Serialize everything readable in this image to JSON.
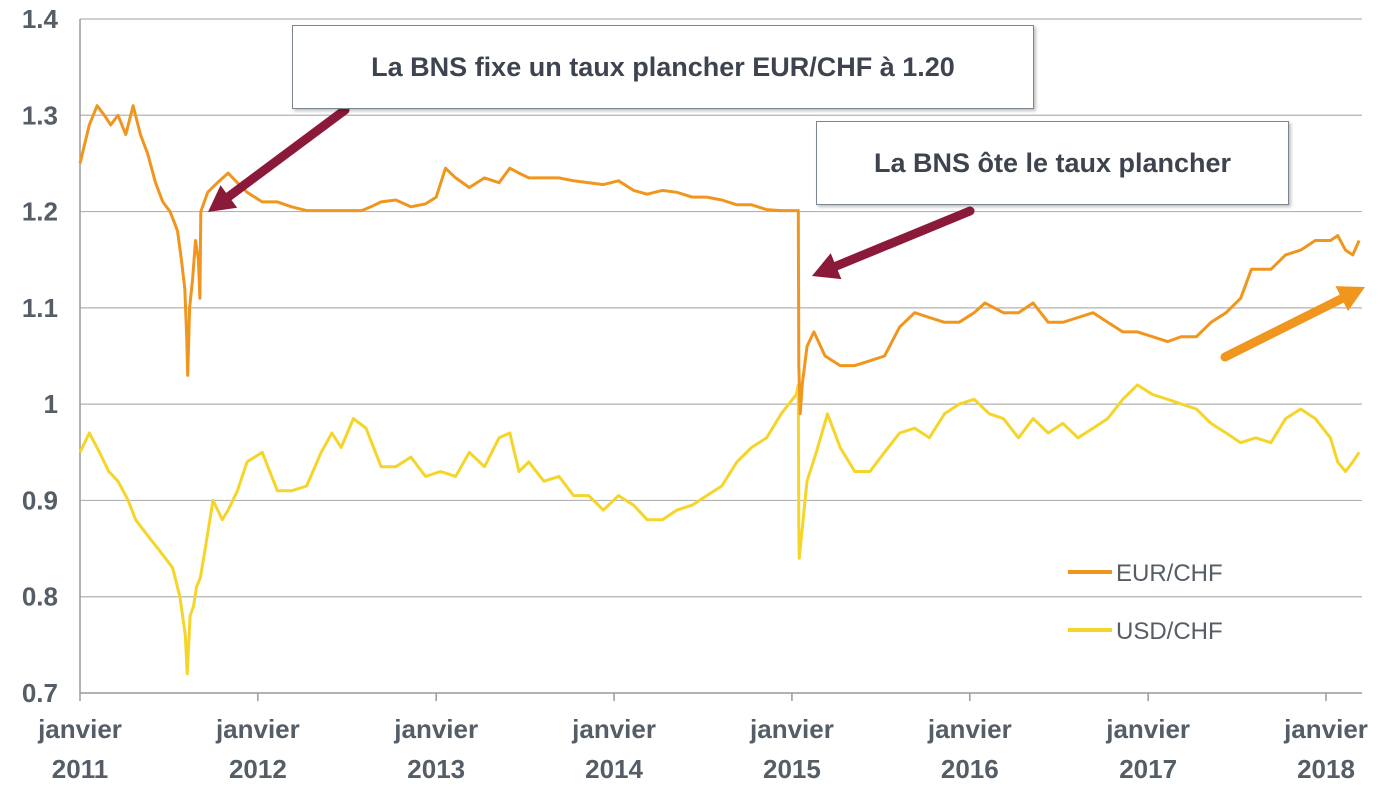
{
  "chart_data": {
    "type": "line",
    "title": "",
    "xlabel": "",
    "ylabel": "",
    "ylim": [
      0.7,
      1.4
    ],
    "y_ticks": [
      "0.7",
      "0.8",
      "0.9",
      "1",
      "1.1",
      "1.2",
      "1.3",
      "1.4"
    ],
    "x_ticks": [
      {
        "label_top": "janvier",
        "label_bottom": "2011",
        "x": "2011-01"
      },
      {
        "label_top": "janvier",
        "label_bottom": "2012",
        "x": "2012-01"
      },
      {
        "label_top": "janvier",
        "label_bottom": "2013",
        "x": "2013-01"
      },
      {
        "label_top": "janvier",
        "label_bottom": "2014",
        "x": "2014-01"
      },
      {
        "label_top": "janvier",
        "label_bottom": "2015",
        "x": "2015-01"
      },
      {
        "label_top": "janvier",
        "label_bottom": "2016",
        "x": "2016-01"
      },
      {
        "label_top": "janvier",
        "label_bottom": "2017",
        "x": "2017-01"
      },
      {
        "label_top": "janvier",
        "label_bottom": "2018",
        "x": "2018-01"
      }
    ],
    "grid": true,
    "legend_position": "bottom-right",
    "series": [
      {
        "name": "EUR/CHF",
        "color": "#f0961e",
        "points": [
          [
            "2011-01-01",
            1.25
          ],
          [
            "2011-01-20",
            1.29
          ],
          [
            "2011-02-05",
            1.31
          ],
          [
            "2011-02-20",
            1.3
          ],
          [
            "2011-03-05",
            1.29
          ],
          [
            "2011-03-20",
            1.3
          ],
          [
            "2011-04-05",
            1.28
          ],
          [
            "2011-04-20",
            1.31
          ],
          [
            "2011-05-05",
            1.28
          ],
          [
            "2011-05-20",
            1.26
          ],
          [
            "2011-06-05",
            1.23
          ],
          [
            "2011-06-20",
            1.21
          ],
          [
            "2011-07-05",
            1.2
          ],
          [
            "2011-07-20",
            1.18
          ],
          [
            "2011-07-28",
            1.15
          ],
          [
            "2011-08-04",
            1.12
          ],
          [
            "2011-08-08",
            1.07
          ],
          [
            "2011-08-10",
            1.03
          ],
          [
            "2011-08-14",
            1.1
          ],
          [
            "2011-08-20",
            1.13
          ],
          [
            "2011-08-26",
            1.17
          ],
          [
            "2011-09-01",
            1.15
          ],
          [
            "2011-09-04",
            1.11
          ],
          [
            "2011-09-06",
            1.2
          ],
          [
            "2011-09-20",
            1.22
          ],
          [
            "2011-10-10",
            1.23
          ],
          [
            "2011-11-01",
            1.24
          ],
          [
            "2011-11-20",
            1.23
          ],
          [
            "2011-12-10",
            1.22
          ],
          [
            "2012-01-10",
            1.21
          ],
          [
            "2012-02-10",
            1.21
          ],
          [
            "2012-03-10",
            1.205
          ],
          [
            "2012-04-10",
            1.201
          ],
          [
            "2012-06-01",
            1.201
          ],
          [
            "2012-08-01",
            1.201
          ],
          [
            "2012-08-20",
            1.205
          ],
          [
            "2012-09-10",
            1.21
          ],
          [
            "2012-10-10",
            1.212
          ],
          [
            "2012-11-10",
            1.205
          ],
          [
            "2012-12-10",
            1.208
          ],
          [
            "2013-01-01",
            1.215
          ],
          [
            "2013-01-20",
            1.245
          ],
          [
            "2013-02-10",
            1.235
          ],
          [
            "2013-03-10",
            1.225
          ],
          [
            "2013-04-10",
            1.235
          ],
          [
            "2013-05-10",
            1.23
          ],
          [
            "2013-06-01",
            1.245
          ],
          [
            "2013-06-20",
            1.24
          ],
          [
            "2013-07-10",
            1.235
          ],
          [
            "2013-08-10",
            1.235
          ],
          [
            "2013-09-10",
            1.235
          ],
          [
            "2013-10-10",
            1.232
          ],
          [
            "2013-11-10",
            1.23
          ],
          [
            "2013-12-10",
            1.228
          ],
          [
            "2014-01-10",
            1.232
          ],
          [
            "2014-02-10",
            1.222
          ],
          [
            "2014-03-10",
            1.218
          ],
          [
            "2014-04-10",
            1.222
          ],
          [
            "2014-05-10",
            1.22
          ],
          [
            "2014-06-10",
            1.215
          ],
          [
            "2014-07-10",
            1.215
          ],
          [
            "2014-08-10",
            1.212
          ],
          [
            "2014-09-10",
            1.207
          ],
          [
            "2014-10-10",
            1.207
          ],
          [
            "2014-11-10",
            1.202
          ],
          [
            "2014-12-10",
            1.201
          ],
          [
            "2015-01-14",
            1.201
          ],
          [
            "2015-01-15",
            1.04
          ],
          [
            "2015-01-18",
            0.99
          ],
          [
            "2015-01-22",
            1.02
          ],
          [
            "2015-02-01",
            1.06
          ],
          [
            "2015-02-15",
            1.075
          ],
          [
            "2015-03-10",
            1.05
          ],
          [
            "2015-04-10",
            1.04
          ],
          [
            "2015-05-10",
            1.04
          ],
          [
            "2015-06-10",
            1.045
          ],
          [
            "2015-07-10",
            1.05
          ],
          [
            "2015-08-10",
            1.08
          ],
          [
            "2015-09-10",
            1.095
          ],
          [
            "2015-10-10",
            1.09
          ],
          [
            "2015-11-10",
            1.085
          ],
          [
            "2015-12-10",
            1.085
          ],
          [
            "2016-01-10",
            1.095
          ],
          [
            "2016-02-01",
            1.105
          ],
          [
            "2016-03-10",
            1.095
          ],
          [
            "2016-04-10",
            1.095
          ],
          [
            "2016-05-10",
            1.105
          ],
          [
            "2016-06-10",
            1.085
          ],
          [
            "2016-07-10",
            1.085
          ],
          [
            "2016-08-10",
            1.09
          ],
          [
            "2016-09-10",
            1.095
          ],
          [
            "2016-10-10",
            1.085
          ],
          [
            "2016-11-10",
            1.075
          ],
          [
            "2016-12-10",
            1.075
          ],
          [
            "2017-01-10",
            1.07
          ],
          [
            "2017-02-10",
            1.065
          ],
          [
            "2017-03-10",
            1.07
          ],
          [
            "2017-04-10",
            1.07
          ],
          [
            "2017-05-10",
            1.085
          ],
          [
            "2017-06-10",
            1.095
          ],
          [
            "2017-07-10",
            1.11
          ],
          [
            "2017-08-01",
            1.14
          ],
          [
            "2017-09-10",
            1.14
          ],
          [
            "2017-10-10",
            1.155
          ],
          [
            "2017-11-10",
            1.16
          ],
          [
            "2017-12-10",
            1.17
          ],
          [
            "2018-01-10",
            1.17
          ],
          [
            "2018-01-25",
            1.175
          ],
          [
            "2018-02-10",
            1.16
          ],
          [
            "2018-02-25",
            1.155
          ],
          [
            "2018-03-10",
            1.17
          ]
        ]
      },
      {
        "name": "USD/CHF",
        "color": "#f5d52a",
        "points": [
          [
            "2011-01-01",
            0.95
          ],
          [
            "2011-01-20",
            0.97
          ],
          [
            "2011-02-10",
            0.95
          ],
          [
            "2011-03-01",
            0.93
          ],
          [
            "2011-03-20",
            0.92
          ],
          [
            "2011-04-10",
            0.9
          ],
          [
            "2011-04-25",
            0.88
          ],
          [
            "2011-05-10",
            0.87
          ],
          [
            "2011-05-25",
            0.86
          ],
          [
            "2011-06-10",
            0.85
          ],
          [
            "2011-06-25",
            0.84
          ],
          [
            "2011-07-10",
            0.83
          ],
          [
            "2011-07-25",
            0.8
          ],
          [
            "2011-08-05",
            0.76
          ],
          [
            "2011-08-09",
            0.72
          ],
          [
            "2011-08-15",
            0.78
          ],
          [
            "2011-08-22",
            0.79
          ],
          [
            "2011-08-28",
            0.81
          ],
          [
            "2011-09-05",
            0.82
          ],
          [
            "2011-09-15",
            0.85
          ],
          [
            "2011-10-01",
            0.9
          ],
          [
            "2011-10-20",
            0.88
          ],
          [
            "2011-11-01",
            0.89
          ],
          [
            "2011-11-20",
            0.91
          ],
          [
            "2011-12-10",
            0.94
          ],
          [
            "2012-01-10",
            0.95
          ],
          [
            "2012-02-10",
            0.91
          ],
          [
            "2012-03-10",
            0.91
          ],
          [
            "2012-04-10",
            0.915
          ],
          [
            "2012-05-10",
            0.95
          ],
          [
            "2012-06-01",
            0.97
          ],
          [
            "2012-06-20",
            0.955
          ],
          [
            "2012-07-15",
            0.985
          ],
          [
            "2012-08-10",
            0.975
          ],
          [
            "2012-09-10",
            0.935
          ],
          [
            "2012-10-10",
            0.935
          ],
          [
            "2012-11-10",
            0.945
          ],
          [
            "2012-12-10",
            0.925
          ],
          [
            "2013-01-10",
            0.93
          ],
          [
            "2013-02-10",
            0.925
          ],
          [
            "2013-03-10",
            0.95
          ],
          [
            "2013-04-10",
            0.935
          ],
          [
            "2013-05-10",
            0.965
          ],
          [
            "2013-06-01",
            0.97
          ],
          [
            "2013-06-20",
            0.93
          ],
          [
            "2013-07-10",
            0.94
          ],
          [
            "2013-08-10",
            0.92
          ],
          [
            "2013-09-10",
            0.925
          ],
          [
            "2013-10-10",
            0.905
          ],
          [
            "2013-11-10",
            0.905
          ],
          [
            "2013-12-10",
            0.89
          ],
          [
            "2014-01-10",
            0.905
          ],
          [
            "2014-02-10",
            0.895
          ],
          [
            "2014-03-10",
            0.88
          ],
          [
            "2014-04-10",
            0.88
          ],
          [
            "2014-05-10",
            0.89
          ],
          [
            "2014-06-10",
            0.895
          ],
          [
            "2014-07-10",
            0.905
          ],
          [
            "2014-08-10",
            0.915
          ],
          [
            "2014-09-10",
            0.94
          ],
          [
            "2014-10-10",
            0.955
          ],
          [
            "2014-11-10",
            0.965
          ],
          [
            "2014-12-10",
            0.99
          ],
          [
            "2015-01-10",
            1.01
          ],
          [
            "2015-01-14",
            1.02
          ],
          [
            "2015-01-15",
            0.87
          ],
          [
            "2015-01-16",
            0.84
          ],
          [
            "2015-01-20",
            0.86
          ],
          [
            "2015-02-01",
            0.92
          ],
          [
            "2015-02-20",
            0.95
          ],
          [
            "2015-03-15",
            0.99
          ],
          [
            "2015-04-10",
            0.955
          ],
          [
            "2015-05-10",
            0.93
          ],
          [
            "2015-06-10",
            0.93
          ],
          [
            "2015-07-10",
            0.95
          ],
          [
            "2015-08-10",
            0.97
          ],
          [
            "2015-09-10",
            0.975
          ],
          [
            "2015-10-10",
            0.965
          ],
          [
            "2015-11-10",
            0.99
          ],
          [
            "2015-12-10",
            1.0
          ],
          [
            "2016-01-10",
            1.005
          ],
          [
            "2016-02-10",
            0.99
          ],
          [
            "2016-03-10",
            0.985
          ],
          [
            "2016-04-10",
            0.965
          ],
          [
            "2016-05-10",
            0.985
          ],
          [
            "2016-06-10",
            0.97
          ],
          [
            "2016-07-10",
            0.98
          ],
          [
            "2016-08-10",
            0.965
          ],
          [
            "2016-09-10",
            0.975
          ],
          [
            "2016-10-10",
            0.985
          ],
          [
            "2016-11-10",
            1.005
          ],
          [
            "2016-12-10",
            1.02
          ],
          [
            "2017-01-10",
            1.01
          ],
          [
            "2017-02-10",
            1.005
          ],
          [
            "2017-03-10",
            1.0
          ],
          [
            "2017-04-10",
            0.995
          ],
          [
            "2017-05-10",
            0.98
          ],
          [
            "2017-06-10",
            0.97
          ],
          [
            "2017-07-10",
            0.96
          ],
          [
            "2017-08-10",
            0.965
          ],
          [
            "2017-09-10",
            0.96
          ],
          [
            "2017-10-10",
            0.985
          ],
          [
            "2017-11-10",
            0.995
          ],
          [
            "2017-12-10",
            0.985
          ],
          [
            "2018-01-10",
            0.965
          ],
          [
            "2018-01-25",
            0.94
          ],
          [
            "2018-02-10",
            0.93
          ],
          [
            "2018-02-25",
            0.94
          ],
          [
            "2018-03-10",
            0.95
          ]
        ]
      }
    ],
    "annotations": [
      {
        "text": "La BNS fixe un taux plancher EUR/CHF à 1.20"
      },
      {
        "text": "La BNS ôte le taux plancher"
      }
    ],
    "colors": {
      "arrow": "#8b1a3a",
      "trend_arrow": "#f0961e",
      "grid": "#b3b3b3",
      "axis_text": "#555d66"
    }
  }
}
